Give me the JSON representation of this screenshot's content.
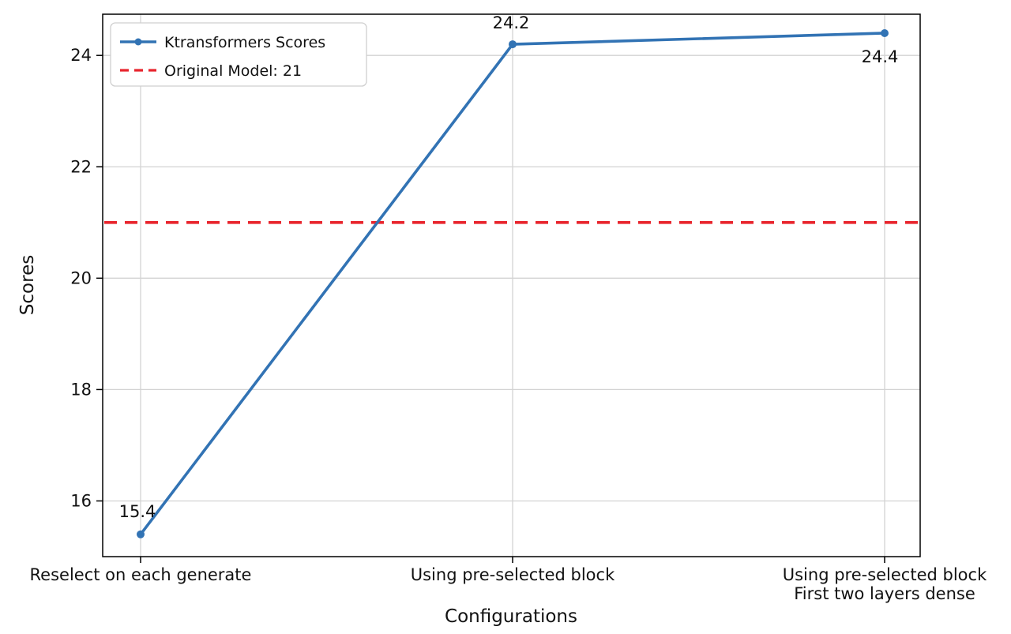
{
  "chart_data": {
    "type": "line",
    "title": "",
    "xlabel": "Configurations",
    "ylabel": "Scores",
    "categories": [
      "Reselect on each generate",
      "Using pre-selected block",
      "Using pre-selected block\nFirst two layers dense"
    ],
    "series": [
      {
        "name": "Ktransformers Scores",
        "values": [
          15.4,
          24.2,
          24.4
        ],
        "color": "#3273b4",
        "marker": "circle"
      }
    ],
    "point_labels": [
      "15.4",
      "24.2",
      "24.4"
    ],
    "reference_line": {
      "label": "Original Model: 21",
      "value": 21,
      "color": "#e8252d",
      "style": "dashed"
    },
    "yticks": [
      16,
      18,
      20,
      22,
      24
    ],
    "ylim": [
      15.0,
      24.74
    ],
    "grid": true,
    "grid_color": "#d3d3d3",
    "legend_position": "upper left"
  }
}
